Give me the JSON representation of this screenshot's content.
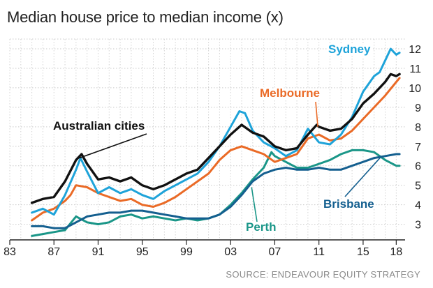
{
  "chart_data": {
    "type": "line",
    "title": "Median house price to median income (x)",
    "source": "SOURCE: ENDEAVOUR EQUITY STRATEGY",
    "xlabel": "",
    "ylabel": "",
    "xlim": [
      1983,
      2018.8
    ],
    "ylim": [
      2.2,
      12.5
    ],
    "grid": true,
    "x_tick_labels": [
      {
        "x": 1983,
        "label": "83"
      },
      {
        "x": 1987,
        "label": "87"
      },
      {
        "x": 1991,
        "label": "91"
      },
      {
        "x": 1995,
        "label": "95"
      },
      {
        "x": 1999,
        "label": "99"
      },
      {
        "x": 2003,
        "label": "03"
      },
      {
        "x": 2007,
        "label": "07"
      },
      {
        "x": 2011,
        "label": "11"
      },
      {
        "x": 2015,
        "label": "15"
      },
      {
        "x": 2018,
        "label": "18"
      }
    ],
    "y_ticks": [
      3,
      4,
      5,
      6,
      7,
      8,
      9,
      10,
      11,
      12
    ],
    "y_tick_labels": [
      "3",
      "4",
      "5",
      "6",
      "7",
      "8",
      "9",
      "10",
      "11",
      "12"
    ],
    "series": [
      {
        "name": "Sydney",
        "color": "#1ea3d9",
        "x": [
          1985,
          1986,
          1987,
          1988,
          1989,
          1989.4,
          1990,
          1991,
          1992,
          1993,
          1994,
          1995,
          1996,
          1997,
          1998,
          1999,
          2000,
          2001,
          2002,
          2003,
          2003.8,
          2004.3,
          2005,
          2006,
          2007,
          2008,
          2009,
          2010,
          2011,
          2012,
          2013,
          2014,
          2015,
          2016,
          2016.5,
          2017,
          2017.5,
          2018,
          2018.3
        ],
        "values": [
          3.6,
          3.8,
          3.5,
          4.5,
          5.8,
          6.4,
          5.7,
          4.6,
          4.9,
          4.6,
          4.8,
          4.5,
          4.3,
          4.7,
          5.0,
          5.3,
          5.6,
          6.2,
          7.0,
          8.0,
          8.8,
          8.7,
          7.8,
          7.2,
          6.9,
          6.5,
          6.8,
          7.9,
          7.2,
          7.1,
          7.6,
          8.5,
          9.8,
          10.6,
          10.8,
          11.4,
          12.0,
          11.7,
          11.8
        ]
      },
      {
        "name": "Australian cities",
        "color": "#111111",
        "x": [
          1985,
          1986,
          1987,
          1988,
          1989,
          1989.5,
          1990,
          1991,
          1992,
          1993,
          1994,
          1995,
          1996,
          1997,
          1998,
          1999,
          2000,
          2001,
          2002,
          2003,
          2004,
          2005,
          2006,
          2007,
          2008,
          2009,
          2010,
          2010.8,
          2011,
          2012,
          2013,
          2014,
          2015,
          2016,
          2017,
          2017.5,
          2018,
          2018.3
        ],
        "values": [
          4.1,
          4.3,
          4.4,
          5.2,
          6.3,
          6.6,
          6.1,
          5.3,
          5.4,
          5.2,
          5.4,
          5.0,
          4.8,
          5.0,
          5.3,
          5.6,
          5.8,
          6.4,
          7.0,
          7.6,
          8.1,
          7.7,
          7.5,
          7.0,
          6.8,
          6.9,
          7.6,
          8.1,
          8.0,
          7.8,
          7.9,
          8.4,
          9.2,
          9.7,
          10.3,
          10.7,
          10.6,
          10.7
        ]
      },
      {
        "name": "Melbourne",
        "color": "#ea6a26",
        "x": [
          1985,
          1986,
          1987,
          1988,
          1988.5,
          1989,
          1990,
          1991,
          1992,
          1993,
          1994,
          1995,
          1996,
          1997,
          1998,
          1999,
          2000,
          2001,
          2002,
          2003,
          2004,
          2005,
          2006,
          2007,
          2008,
          2009,
          2010,
          2011,
          2012,
          2013,
          2014,
          2015,
          2016,
          2017,
          2018,
          2018.3
        ],
        "values": [
          3.2,
          3.6,
          3.8,
          4.2,
          4.5,
          5.0,
          4.9,
          4.6,
          4.4,
          4.2,
          4.3,
          4.0,
          3.9,
          4.1,
          4.4,
          4.8,
          5.2,
          5.6,
          6.3,
          6.8,
          7.0,
          6.8,
          6.6,
          6.2,
          6.4,
          6.6,
          7.4,
          7.6,
          7.3,
          7.4,
          7.8,
          8.4,
          9.0,
          9.6,
          10.3,
          10.5
        ]
      },
      {
        "name": "Perth",
        "color": "#1a9688",
        "x": [
          1985,
          1986,
          1987,
          1988,
          1989,
          1990,
          1991,
          1992,
          1993,
          1994,
          1995,
          1996,
          1997,
          1998,
          1999,
          2000,
          2001,
          2002,
          2003,
          2004,
          2005,
          2006,
          2006.7,
          2007,
          2008,
          2009,
          2010,
          2011,
          2012,
          2013,
          2014,
          2015,
          2016,
          2017,
          2018,
          2018.3
        ],
        "values": [
          2.4,
          2.5,
          2.6,
          2.7,
          3.4,
          3.1,
          3.0,
          3.1,
          3.4,
          3.5,
          3.3,
          3.4,
          3.3,
          3.2,
          3.3,
          3.2,
          3.3,
          3.5,
          4.0,
          4.6,
          5.3,
          5.9,
          6.7,
          6.5,
          6.2,
          5.9,
          5.9,
          6.1,
          6.3,
          6.6,
          6.8,
          6.8,
          6.7,
          6.3,
          6.0,
          6.0
        ]
      },
      {
        "name": "Brisbane",
        "color": "#145f8f",
        "x": [
          1985,
          1986,
          1987,
          1988,
          1989,
          1990,
          1991,
          1992,
          1993,
          1994,
          1995,
          1996,
          1997,
          1998,
          1999,
          2000,
          2001,
          2002,
          2003,
          2004,
          2005,
          2006,
          2007,
          2008,
          2009,
          2010,
          2011,
          2012,
          2013,
          2014,
          2015,
          2016,
          2017,
          2018,
          2018.3
        ],
        "values": [
          2.9,
          2.9,
          2.8,
          2.8,
          3.1,
          3.4,
          3.5,
          3.6,
          3.6,
          3.7,
          3.7,
          3.6,
          3.5,
          3.4,
          3.3,
          3.3,
          3.3,
          3.5,
          3.9,
          4.5,
          5.2,
          5.6,
          5.8,
          5.9,
          5.8,
          5.8,
          5.9,
          5.8,
          5.8,
          6.0,
          6.2,
          6.4,
          6.5,
          6.6,
          6.6
        ]
      }
    ],
    "annotations": [
      {
        "text": "Sydney",
        "series": "Sydney",
        "color": "#1ea3d9"
      },
      {
        "text": "Australian cities",
        "series": "Australian cities",
        "color": "#111111"
      },
      {
        "text": "Melbourne",
        "series": "Melbourne",
        "color": "#ea6a26"
      },
      {
        "text": "Perth",
        "series": "Perth",
        "color": "#1a9688"
      },
      {
        "text": "Brisbane",
        "series": "Brisbane",
        "color": "#145f8f"
      }
    ]
  }
}
